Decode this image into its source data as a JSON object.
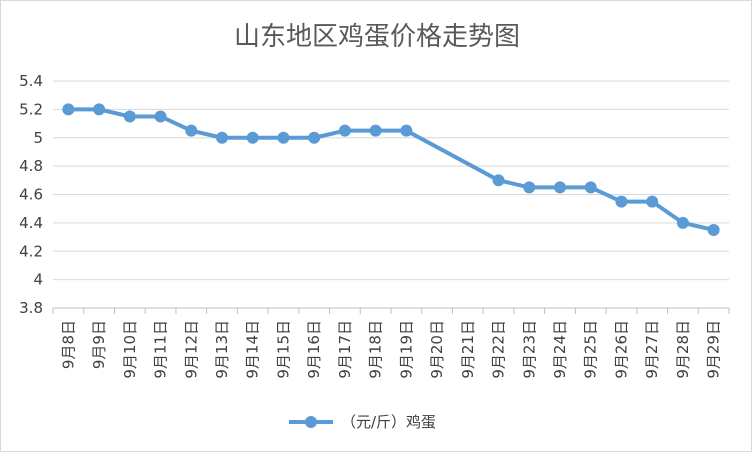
{
  "chart_data": {
    "type": "line",
    "title": "山东地区鸡蛋价格走势图",
    "xlabel": "",
    "ylabel": "",
    "categories": [
      "9月8日",
      "9月9日",
      "9月10日",
      "9月11日",
      "9月12日",
      "9月13日",
      "9月14日",
      "9月15日",
      "9月16日",
      "9月17日",
      "9月18日",
      "9月19日",
      "9月20日",
      "9月21日",
      "9月22日",
      "9月23日",
      "9月24日",
      "9月25日",
      "9月26日",
      "9月27日",
      "9月28日",
      "9月29日"
    ],
    "series": [
      {
        "name": "（元/斤）鸡蛋",
        "color": "#5b9bd5",
        "values": [
          5.2,
          5.2,
          5.15,
          5.15,
          5.05,
          5.0,
          5.0,
          5.0,
          5.0,
          5.05,
          5.05,
          5.05,
          null,
          null,
          4.7,
          4.65,
          4.65,
          4.65,
          4.55,
          4.55,
          4.4,
          4.35
        ]
      }
    ],
    "ylim": [
      3.8,
      5.4
    ],
    "yticks": [
      "3.8",
      "4",
      "4.2",
      "4.4",
      "4.6",
      "4.8",
      "5",
      "5.2",
      "5.4"
    ],
    "grid": true,
    "legend_position": "bottom",
    "gridline_color": "#d9d9d9"
  }
}
